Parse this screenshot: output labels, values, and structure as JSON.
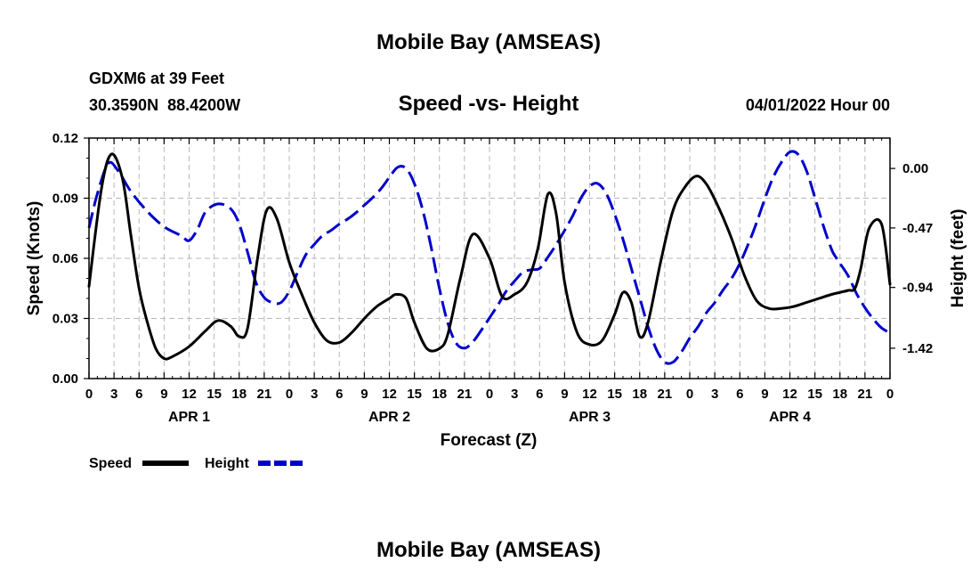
{
  "chart_data": {
    "type": "line",
    "title": "Mobile Bay (AMSEAS)",
    "station": "GDXM6 at 39 Feet",
    "location": "30.3590N  88.4200W",
    "subtitle": "Speed -vs- Height",
    "datetime": "04/01/2022 Hour 00",
    "footer_title": "Mobile Bay (AMSEAS)",
    "xlabel": "Forecast (Z)",
    "ylabel_left": "Speed (Knots)",
    "ylabel_right": "Height (feet)",
    "x_unit": "hours from 04/01/2022 00Z",
    "xlim": [
      0,
      96
    ],
    "ylim_left": [
      0,
      0.12
    ],
    "ylim_right": [
      -1.66,
      0.24
    ],
    "x_tick_labels": [
      "0",
      "3",
      "6",
      "9",
      "12",
      "15",
      "18",
      "21",
      "0",
      "3",
      "6",
      "9",
      "12",
      "15",
      "18",
      "21",
      "0",
      "3",
      "6",
      "9",
      "12",
      "15",
      "18",
      "21",
      "0",
      "3",
      "6",
      "9",
      "12",
      "15",
      "18",
      "21",
      "0"
    ],
    "y_left_ticks": [
      "0.00",
      "0.03",
      "0.06",
      "0.09",
      "0.12"
    ],
    "y_left_tick_values": [
      0,
      0.03,
      0.06,
      0.09,
      0.12
    ],
    "y_right_ticks": [
      "0.00",
      "-0.47",
      "-0.94",
      "-1.42"
    ],
    "y_right_tick_values": [
      0.0,
      -0.47,
      -0.94,
      -1.42
    ],
    "day_labels": [
      {
        "label": "APR 1",
        "x": 12
      },
      {
        "label": "APR 2",
        "x": 36
      },
      {
        "label": "APR 3",
        "x": 60
      },
      {
        "label": "APR 4",
        "x": 84
      }
    ],
    "grid": true,
    "legend_position": "bottom-left",
    "series": [
      {
        "name": "Speed",
        "axis": "left",
        "color": "#000000",
        "dash": "solid",
        "x": [
          0,
          1.5,
          2.7,
          4,
          5,
          6,
          7,
          8,
          9,
          10,
          12,
          14,
          15.5,
          17,
          18,
          19,
          20.2,
          21.3,
          22.5,
          24,
          25.5,
          27,
          28.5,
          30,
          31.5,
          33,
          34.5,
          36,
          36.8,
          38,
          39,
          40.5,
          42,
          43,
          44.5,
          46,
          48,
          49.5,
          51,
          52.5,
          53.8,
          55,
          56,
          57,
          58.5,
          60,
          61.5,
          63,
          64,
          65,
          66,
          67,
          68.5,
          70,
          71.5,
          72.8,
          74,
          75.5,
          77,
          78.5,
          80,
          81.5,
          83,
          84.5,
          86,
          87.5,
          89,
          90,
          91,
          91.8,
          92.5,
          93.5,
          95,
          96
        ],
        "values": [
          0.046,
          0.095,
          0.112,
          0.1,
          0.072,
          0.045,
          0.028,
          0.015,
          0.01,
          0.011,
          0.016,
          0.024,
          0.029,
          0.026,
          0.021,
          0.025,
          0.06,
          0.084,
          0.08,
          0.058,
          0.042,
          0.028,
          0.019,
          0.018,
          0.023,
          0.03,
          0.036,
          0.04,
          0.042,
          0.04,
          0.028,
          0.015,
          0.015,
          0.022,
          0.05,
          0.072,
          0.06,
          0.041,
          0.042,
          0.048,
          0.065,
          0.092,
          0.082,
          0.048,
          0.023,
          0.017,
          0.019,
          0.032,
          0.043,
          0.038,
          0.021,
          0.028,
          0.058,
          0.084,
          0.096,
          0.101,
          0.097,
          0.085,
          0.07,
          0.052,
          0.039,
          0.035,
          0.035,
          0.036,
          0.038,
          0.04,
          0.042,
          0.043,
          0.044,
          0.045,
          0.055,
          0.075,
          0.077,
          0.047
        ]
      },
      {
        "name": "Height",
        "axis": "right",
        "color": "#0000cc",
        "dash": "dashed",
        "x": [
          0,
          1,
          2.3,
          3.5,
          5,
          7,
          9,
          11,
          12,
          13,
          14,
          15.5,
          17,
          18,
          19,
          20,
          21,
          22,
          23,
          24,
          25,
          26,
          27,
          28,
          29,
          30,
          31,
          32,
          33,
          34,
          35,
          36,
          37,
          38,
          39,
          40,
          41,
          42,
          43,
          44,
          45,
          46,
          47,
          48,
          49,
          50,
          51,
          52,
          53,
          54,
          55,
          56,
          57,
          58,
          59,
          60,
          61,
          62,
          63,
          64,
          65,
          66,
          67,
          68,
          69,
          70,
          71,
          72,
          73,
          74,
          74.5,
          75,
          76,
          77,
          78,
          79,
          80,
          81,
          82,
          83,
          84,
          85,
          86,
          87,
          88,
          89,
          89.5,
          90,
          91,
          92,
          93,
          94,
          95,
          96
        ],
        "values": [
          -0.47,
          -0.2,
          0.04,
          -0.02,
          -0.18,
          -0.34,
          -0.46,
          -0.53,
          -0.57,
          -0.48,
          -0.34,
          -0.28,
          -0.32,
          -0.44,
          -0.66,
          -0.9,
          -1.02,
          -1.06,
          -1.06,
          -0.97,
          -0.82,
          -0.68,
          -0.6,
          -0.53,
          -0.49,
          -0.44,
          -0.4,
          -0.35,
          -0.29,
          -0.23,
          -0.16,
          -0.07,
          0.01,
          0.0,
          -0.12,
          -0.33,
          -0.62,
          -0.95,
          -1.22,
          -1.38,
          -1.42,
          -1.37,
          -1.28,
          -1.18,
          -1.08,
          -0.97,
          -0.89,
          -0.82,
          -0.8,
          -0.79,
          -0.7,
          -0.6,
          -0.49,
          -0.37,
          -0.23,
          -0.14,
          -0.12,
          -0.2,
          -0.36,
          -0.56,
          -0.79,
          -1.02,
          -1.25,
          -1.43,
          -1.53,
          -1.53,
          -1.45,
          -1.34,
          -1.25,
          -1.14,
          -1.1,
          -1.06,
          -0.96,
          -0.87,
          -0.75,
          -0.6,
          -0.43,
          -0.24,
          -0.07,
          0.05,
          0.13,
          0.11,
          -0.02,
          -0.23,
          -0.45,
          -0.64,
          -0.7,
          -0.75,
          -0.85,
          -0.99,
          -1.1,
          -1.19,
          -1.26,
          -1.3
        ]
      }
    ]
  }
}
